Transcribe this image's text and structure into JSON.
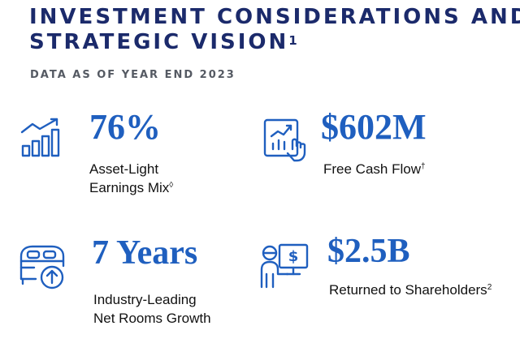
{
  "header": {
    "title_line1": "INVESTMENT CONSIDERATIONS AND",
    "title_line2": "STRATEGIC VISION",
    "title_footnote": "1",
    "subtitle": "DATA AS OF YEAR END 2023"
  },
  "metrics": [
    {
      "icon": "growth-chart-icon",
      "value": "76%",
      "label_line1": "Asset-Light",
      "label_line2": "Earnings Mix",
      "footnote": "◊"
    },
    {
      "icon": "touch-chart-icon",
      "value": "$602M",
      "label_line1": "Free Cash Flow",
      "footnote": "†"
    },
    {
      "icon": "hotel-bed-growth-icon",
      "value": "7 Years",
      "label_line1": "Industry-Leading",
      "label_line2": "Net Rooms Growth"
    },
    {
      "icon": "shareholder-dollar-icon",
      "value": "$2.5B",
      "label_line1": "Returned to Shareholders",
      "footnote": "2"
    }
  ],
  "colors": {
    "title": "#1b2a6b",
    "accent": "#1f5fbf",
    "subtitle": "#555a63",
    "body_text": "#111111"
  }
}
